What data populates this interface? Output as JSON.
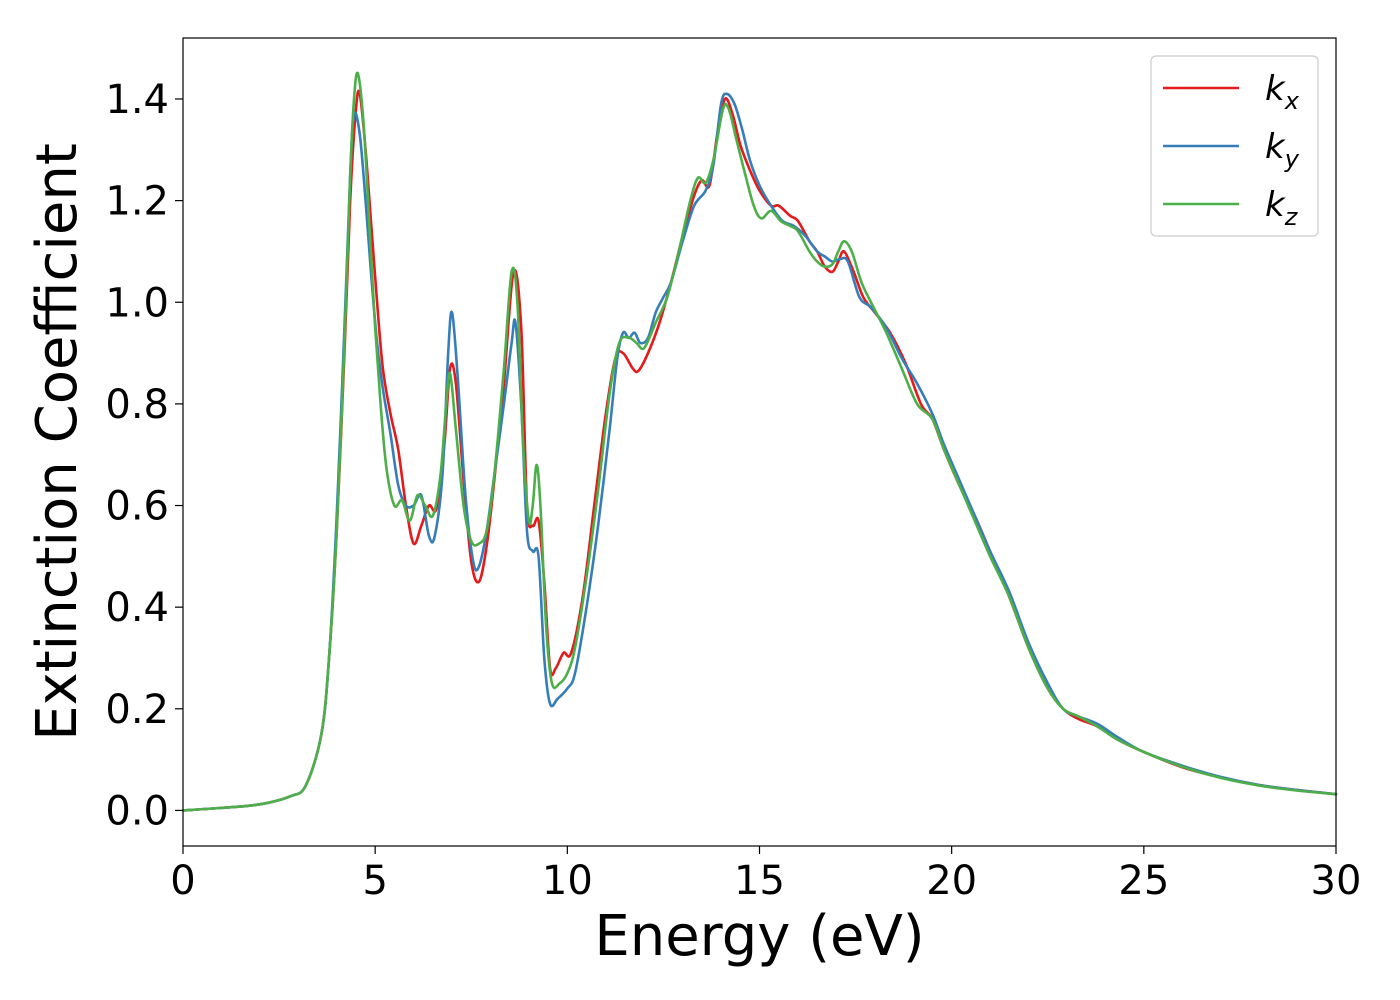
{
  "chart_data": {
    "type": "line",
    "xlabel": "Energy (eV)",
    "ylabel": "Extinction Coefficient",
    "xlim": [
      0,
      30
    ],
    "ylim": [
      -0.07,
      1.52
    ],
    "xticks": [
      0,
      5,
      10,
      15,
      20,
      25,
      30
    ],
    "yticks": [
      0.0,
      0.2,
      0.4,
      0.6,
      0.8,
      1.0,
      1.2,
      1.4
    ],
    "xtick_labels": [
      "0",
      "5",
      "10",
      "15",
      "20",
      "25",
      "30"
    ],
    "ytick_labels": [
      "0.0",
      "0.2",
      "0.4",
      "0.6",
      "0.8",
      "1.0",
      "1.2",
      "1.4"
    ],
    "grid": false,
    "legend_position": "top-right",
    "series": [
      {
        "name": "k_x",
        "label_main": "k",
        "label_sub": "x",
        "color": "#e41a1c",
        "points": [
          [
            0,
            0
          ],
          [
            1,
            0.005
          ],
          [
            2,
            0.012
          ],
          [
            2.8,
            0.028
          ],
          [
            3.2,
            0.05
          ],
          [
            3.6,
            0.15
          ],
          [
            3.8,
            0.3
          ],
          [
            4.0,
            0.55
          ],
          [
            4.2,
            0.9
          ],
          [
            4.35,
            1.2
          ],
          [
            4.5,
            1.38
          ],
          [
            4.6,
            1.41
          ],
          [
            4.75,
            1.3
          ],
          [
            4.9,
            1.15
          ],
          [
            5.05,
            1.0
          ],
          [
            5.2,
            0.87
          ],
          [
            5.4,
            0.78
          ],
          [
            5.6,
            0.71
          ],
          [
            5.8,
            0.6
          ],
          [
            6.0,
            0.525
          ],
          [
            6.2,
            0.56
          ],
          [
            6.4,
            0.6
          ],
          [
            6.6,
            0.595
          ],
          [
            6.8,
            0.72
          ],
          [
            6.95,
            0.87
          ],
          [
            7.1,
            0.84
          ],
          [
            7.3,
            0.65
          ],
          [
            7.5,
            0.49
          ],
          [
            7.7,
            0.45
          ],
          [
            7.9,
            0.52
          ],
          [
            8.1,
            0.65
          ],
          [
            8.35,
            0.84
          ],
          [
            8.6,
            1.06
          ],
          [
            8.8,
            0.95
          ],
          [
            8.95,
            0.6
          ],
          [
            9.1,
            0.56
          ],
          [
            9.25,
            0.57
          ],
          [
            9.4,
            0.45
          ],
          [
            9.55,
            0.28
          ],
          [
            9.7,
            0.28
          ],
          [
            9.9,
            0.31
          ],
          [
            10.1,
            0.31
          ],
          [
            10.4,
            0.42
          ],
          [
            10.7,
            0.6
          ],
          [
            11.0,
            0.78
          ],
          [
            11.25,
            0.89
          ],
          [
            11.45,
            0.9
          ],
          [
            11.7,
            0.87
          ],
          [
            11.85,
            0.865
          ],
          [
            12.1,
            0.9
          ],
          [
            12.4,
            0.96
          ],
          [
            12.7,
            1.04
          ],
          [
            13.0,
            1.13
          ],
          [
            13.3,
            1.21
          ],
          [
            13.5,
            1.24
          ],
          [
            13.7,
            1.23
          ],
          [
            13.9,
            1.33
          ],
          [
            14.1,
            1.4
          ],
          [
            14.3,
            1.37
          ],
          [
            14.5,
            1.31
          ],
          [
            14.75,
            1.26
          ],
          [
            15.0,
            1.22
          ],
          [
            15.3,
            1.19
          ],
          [
            15.5,
            1.19
          ],
          [
            15.8,
            1.17
          ],
          [
            16.0,
            1.16
          ],
          [
            16.3,
            1.12
          ],
          [
            16.5,
            1.1
          ],
          [
            16.7,
            1.07
          ],
          [
            16.9,
            1.06
          ],
          [
            17.05,
            1.08
          ],
          [
            17.2,
            1.1
          ],
          [
            17.45,
            1.06
          ],
          [
            17.7,
            1.01
          ],
          [
            18.0,
            0.98
          ],
          [
            18.4,
            0.94
          ],
          [
            18.8,
            0.88
          ],
          [
            19.2,
            0.8
          ],
          [
            19.5,
            0.77
          ],
          [
            19.8,
            0.71
          ],
          [
            20.2,
            0.64
          ],
          [
            20.6,
            0.58
          ],
          [
            21.0,
            0.51
          ],
          [
            21.5,
            0.42
          ],
          [
            22.0,
            0.32
          ],
          [
            22.5,
            0.24
          ],
          [
            22.9,
            0.2
          ],
          [
            23.3,
            0.18
          ],
          [
            23.8,
            0.165
          ],
          [
            24.3,
            0.14
          ],
          [
            25.0,
            0.115
          ],
          [
            26.0,
            0.085
          ],
          [
            27.0,
            0.065
          ],
          [
            28.0,
            0.05
          ],
          [
            29.0,
            0.04
          ],
          [
            30.0,
            0.032
          ]
        ]
      },
      {
        "name": "k_y",
        "label_main": "k",
        "label_sub": "y",
        "color": "#377eb8",
        "points": [
          [
            0,
            0
          ],
          [
            1,
            0.005
          ],
          [
            2,
            0.012
          ],
          [
            2.8,
            0.028
          ],
          [
            3.2,
            0.05
          ],
          [
            3.6,
            0.15
          ],
          [
            3.8,
            0.3
          ],
          [
            4.0,
            0.58
          ],
          [
            4.2,
            0.95
          ],
          [
            4.35,
            1.25
          ],
          [
            4.45,
            1.37
          ],
          [
            4.6,
            1.33
          ],
          [
            4.75,
            1.2
          ],
          [
            4.9,
            1.05
          ],
          [
            5.05,
            0.92
          ],
          [
            5.2,
            0.83
          ],
          [
            5.4,
            0.74
          ],
          [
            5.6,
            0.64
          ],
          [
            5.8,
            0.6
          ],
          [
            6.0,
            0.6
          ],
          [
            6.2,
            0.62
          ],
          [
            6.4,
            0.54
          ],
          [
            6.55,
            0.54
          ],
          [
            6.75,
            0.66
          ],
          [
            6.9,
            0.9
          ],
          [
            7.0,
            0.98
          ],
          [
            7.15,
            0.85
          ],
          [
            7.35,
            0.62
          ],
          [
            7.55,
            0.49
          ],
          [
            7.7,
            0.48
          ],
          [
            7.9,
            0.55
          ],
          [
            8.1,
            0.66
          ],
          [
            8.35,
            0.8
          ],
          [
            8.55,
            0.92
          ],
          [
            8.65,
            0.96
          ],
          [
            8.8,
            0.8
          ],
          [
            8.95,
            0.55
          ],
          [
            9.1,
            0.51
          ],
          [
            9.25,
            0.5
          ],
          [
            9.4,
            0.3
          ],
          [
            9.55,
            0.21
          ],
          [
            9.75,
            0.22
          ],
          [
            10.0,
            0.24
          ],
          [
            10.2,
            0.27
          ],
          [
            10.5,
            0.4
          ],
          [
            10.8,
            0.56
          ],
          [
            11.1,
            0.75
          ],
          [
            11.3,
            0.89
          ],
          [
            11.45,
            0.94
          ],
          [
            11.6,
            0.93
          ],
          [
            11.75,
            0.94
          ],
          [
            11.9,
            0.92
          ],
          [
            12.1,
            0.93
          ],
          [
            12.3,
            0.98
          ],
          [
            12.5,
            1.01
          ],
          [
            12.7,
            1.04
          ],
          [
            13.0,
            1.12
          ],
          [
            13.3,
            1.19
          ],
          [
            13.6,
            1.22
          ],
          [
            13.8,
            1.27
          ],
          [
            14.0,
            1.39
          ],
          [
            14.15,
            1.41
          ],
          [
            14.35,
            1.39
          ],
          [
            14.55,
            1.34
          ],
          [
            14.75,
            1.28
          ],
          [
            15.0,
            1.23
          ],
          [
            15.3,
            1.19
          ],
          [
            15.6,
            1.16
          ],
          [
            15.9,
            1.15
          ],
          [
            16.2,
            1.13
          ],
          [
            16.5,
            1.1
          ],
          [
            16.7,
            1.09
          ],
          [
            16.9,
            1.08
          ],
          [
            17.1,
            1.085
          ],
          [
            17.3,
            1.08
          ],
          [
            17.6,
            1.01
          ],
          [
            17.9,
            0.99
          ],
          [
            18.3,
            0.95
          ],
          [
            18.7,
            0.89
          ],
          [
            19.1,
            0.84
          ],
          [
            19.5,
            0.78
          ],
          [
            19.8,
            0.72
          ],
          [
            20.2,
            0.65
          ],
          [
            20.6,
            0.58
          ],
          [
            21.0,
            0.51
          ],
          [
            21.5,
            0.43
          ],
          [
            22.0,
            0.33
          ],
          [
            22.5,
            0.25
          ],
          [
            22.9,
            0.2
          ],
          [
            23.3,
            0.185
          ],
          [
            23.8,
            0.17
          ],
          [
            24.3,
            0.145
          ],
          [
            25.0,
            0.115
          ],
          [
            26.0,
            0.088
          ],
          [
            27.0,
            0.066
          ],
          [
            28.0,
            0.05
          ],
          [
            29.0,
            0.04
          ],
          [
            30.0,
            0.032
          ]
        ]
      },
      {
        "name": "k_z",
        "label_main": "k",
        "label_sub": "z",
        "color": "#4daf4a",
        "points": [
          [
            0,
            0
          ],
          [
            1,
            0.005
          ],
          [
            2,
            0.012
          ],
          [
            2.8,
            0.028
          ],
          [
            3.2,
            0.05
          ],
          [
            3.6,
            0.15
          ],
          [
            3.8,
            0.3
          ],
          [
            4.0,
            0.55
          ],
          [
            4.2,
            0.92
          ],
          [
            4.35,
            1.25
          ],
          [
            4.45,
            1.4
          ],
          [
            4.55,
            1.45
          ],
          [
            4.7,
            1.35
          ],
          [
            4.85,
            1.15
          ],
          [
            5.0,
            0.95
          ],
          [
            5.15,
            0.79
          ],
          [
            5.3,
            0.67
          ],
          [
            5.5,
            0.6
          ],
          [
            5.7,
            0.61
          ],
          [
            5.9,
            0.57
          ],
          [
            6.1,
            0.62
          ],
          [
            6.3,
            0.6
          ],
          [
            6.5,
            0.58
          ],
          [
            6.7,
            0.66
          ],
          [
            6.85,
            0.8
          ],
          [
            6.95,
            0.86
          ],
          [
            7.1,
            0.75
          ],
          [
            7.3,
            0.6
          ],
          [
            7.5,
            0.53
          ],
          [
            7.7,
            0.525
          ],
          [
            7.9,
            0.55
          ],
          [
            8.1,
            0.66
          ],
          [
            8.35,
            0.87
          ],
          [
            8.55,
            1.06
          ],
          [
            8.7,
            1.0
          ],
          [
            8.85,
            0.72
          ],
          [
            9.0,
            0.57
          ],
          [
            9.1,
            0.6
          ],
          [
            9.2,
            0.68
          ],
          [
            9.3,
            0.6
          ],
          [
            9.45,
            0.36
          ],
          [
            9.6,
            0.25
          ],
          [
            9.8,
            0.25
          ],
          [
            10.0,
            0.27
          ],
          [
            10.2,
            0.32
          ],
          [
            10.5,
            0.46
          ],
          [
            10.8,
            0.63
          ],
          [
            11.1,
            0.82
          ],
          [
            11.35,
            0.92
          ],
          [
            11.6,
            0.93
          ],
          [
            11.8,
            0.92
          ],
          [
            12.0,
            0.91
          ],
          [
            12.3,
            0.96
          ],
          [
            12.6,
            1.01
          ],
          [
            12.9,
            1.1
          ],
          [
            13.2,
            1.2
          ],
          [
            13.4,
            1.245
          ],
          [
            13.6,
            1.235
          ],
          [
            13.8,
            1.28
          ],
          [
            14.05,
            1.38
          ],
          [
            14.2,
            1.38
          ],
          [
            14.4,
            1.32
          ],
          [
            14.6,
            1.26
          ],
          [
            14.85,
            1.19
          ],
          [
            15.05,
            1.165
          ],
          [
            15.3,
            1.18
          ],
          [
            15.55,
            1.16
          ],
          [
            15.8,
            1.15
          ],
          [
            16.0,
            1.14
          ],
          [
            16.3,
            1.1
          ],
          [
            16.5,
            1.08
          ],
          [
            16.7,
            1.07
          ],
          [
            16.9,
            1.075
          ],
          [
            17.05,
            1.1
          ],
          [
            17.2,
            1.12
          ],
          [
            17.4,
            1.1
          ],
          [
            17.65,
            1.04
          ],
          [
            17.9,
            1.0
          ],
          [
            18.3,
            0.94
          ],
          [
            18.7,
            0.87
          ],
          [
            19.1,
            0.8
          ],
          [
            19.5,
            0.77
          ],
          [
            19.8,
            0.71
          ],
          [
            20.2,
            0.64
          ],
          [
            20.6,
            0.57
          ],
          [
            21.0,
            0.5
          ],
          [
            21.5,
            0.42
          ],
          [
            22.0,
            0.32
          ],
          [
            22.5,
            0.24
          ],
          [
            22.9,
            0.2
          ],
          [
            23.3,
            0.185
          ],
          [
            23.8,
            0.165
          ],
          [
            24.3,
            0.14
          ],
          [
            25.0,
            0.115
          ],
          [
            26.0,
            0.086
          ],
          [
            27.0,
            0.064
          ],
          [
            28.0,
            0.049
          ],
          [
            29.0,
            0.039
          ],
          [
            30.0,
            0.032
          ]
        ]
      }
    ]
  }
}
